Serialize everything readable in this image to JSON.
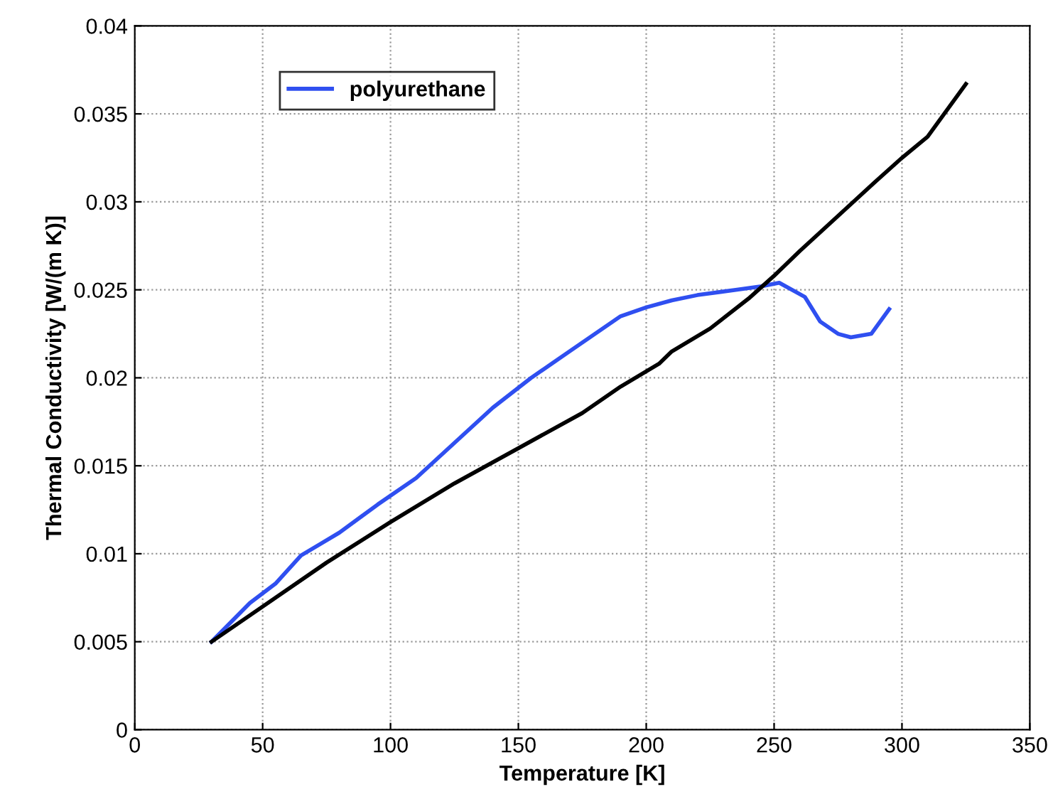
{
  "chart_data": {
    "type": "line",
    "xlabel": "Temperature [K]",
    "ylabel": "Thermal Conductivity [W/(m K)]",
    "xlim": [
      0,
      350
    ],
    "xticks": [
      0,
      50,
      100,
      150,
      200,
      250,
      300,
      350
    ],
    "ylim": [
      0,
      0.04
    ],
    "yticks": [
      0,
      0.005,
      0.01,
      0.015,
      0.02,
      0.025,
      0.03,
      0.035,
      0.04
    ],
    "grid": true,
    "legend": "top left",
    "line_style": "solid",
    "series": [
      {
        "name": "polyurethane",
        "color": "#2f4ff0",
        "x": [
          30,
          45,
          55,
          65,
          80,
          95,
          110,
          125,
          140,
          155,
          170,
          180,
          190,
          200,
          210,
          220,
          235,
          245,
          252,
          262,
          268,
          275,
          280,
          288,
          295
        ],
        "values": [
          0.005,
          0.0072,
          0.0083,
          0.0099,
          0.0112,
          0.0128,
          0.0143,
          0.0163,
          0.0183,
          0.02,
          0.0215,
          0.0225,
          0.0235,
          0.024,
          0.0244,
          0.0247,
          0.025,
          0.0252,
          0.0254,
          0.0246,
          0.0232,
          0.0225,
          0.0223,
          0.0225,
          0.0239
        ]
      },
      {
        "color": "#000000",
        "x": [
          30,
          50,
          75,
          100,
          125,
          150,
          175,
          190,
          205,
          210,
          225,
          240,
          250,
          260,
          275,
          290,
          300,
          310,
          325
        ],
        "values": [
          0.005,
          0.007,
          0.0095,
          0.0118,
          0.014,
          0.016,
          0.018,
          0.0195,
          0.0208,
          0.0215,
          0.0228,
          0.0245,
          0.0258,
          0.0272,
          0.0292,
          0.0312,
          0.0325,
          0.0337,
          0.0367
        ]
      }
    ]
  }
}
